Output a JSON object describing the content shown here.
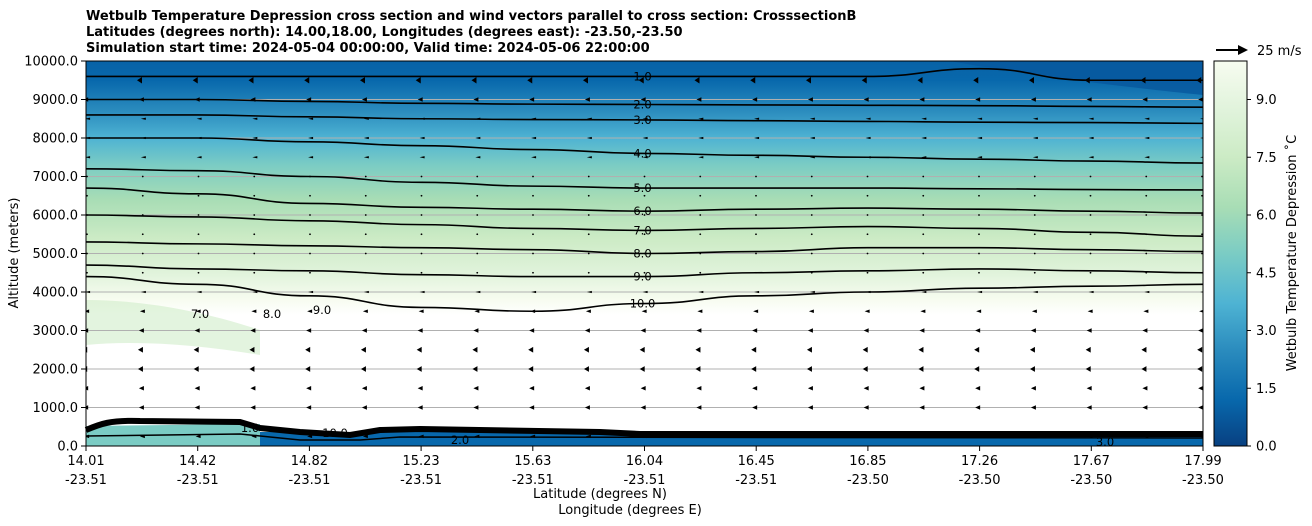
{
  "chart_data": {
    "type": "contour",
    "title_lines": [
      "Wetbulb Temperature Depression cross section and wind vectors parallel to cross section: CrosssectionB",
      "Latitudes (degrees north): 14.00,18.00, Longitudes (degrees east): -23.50,-23.50",
      "Simulation start time: 2024-05-04 00:00:00, Valid time: 2024-05-06 22:00:00"
    ],
    "xlabel_lat": "Latitude (degrees N)",
    "xlabel_lon": "Longitude (degrees E)",
    "ylabel": "Altitude (meters)",
    "ylim": [
      0,
      10000
    ],
    "xlim": [
      14.01,
      17.99
    ],
    "y_ticks": [
      "0.0",
      "1000.0",
      "2000.0",
      "3000.0",
      "4000.0",
      "5000.0",
      "6000.0",
      "7000.0",
      "8000.0",
      "9000.0",
      "10000.0"
    ],
    "x_ticks": [
      {
        "lat": "14.01",
        "lon": "-23.51"
      },
      {
        "lat": "14.42",
        "lon": "-23.51"
      },
      {
        "lat": "14.82",
        "lon": "-23.51"
      },
      {
        "lat": "15.23",
        "lon": "-23.51"
      },
      {
        "lat": "15.63",
        "lon": "-23.51"
      },
      {
        "lat": "16.04",
        "lon": "-23.51"
      },
      {
        "lat": "16.45",
        "lon": "-23.51"
      },
      {
        "lat": "16.85",
        "lon": "-23.50"
      },
      {
        "lat": "17.26",
        "lon": "-23.50"
      },
      {
        "lat": "17.67",
        "lon": "-23.50"
      },
      {
        "lat": "17.99",
        "lon": "-23.50"
      }
    ],
    "colorbar": {
      "label": "Wetbulb Temperature Depression ˚C",
      "min": 0,
      "max": 10,
      "ticks": [
        "0.0",
        "1.5",
        "3.0",
        "4.5",
        "6.0",
        "7.5",
        "9.0"
      ],
      "colors": [
        "#084081",
        "#0868ac",
        "#2b8cbe",
        "#4eb3d3",
        "#7bccc4",
        "#a8ddb5",
        "#ccebc5",
        "#e0f3db",
        "#f7fcf0"
      ]
    },
    "contours": [
      {
        "level": 1.0,
        "label": "1.0",
        "altitudes_m": [
          9600,
          9600,
          9600,
          9600,
          9600,
          9600,
          9600,
          9600,
          9800,
          9500,
          9500
        ]
      },
      {
        "level": 2.0,
        "label": "2.0",
        "altitudes_m": [
          9000,
          9000,
          8950,
          8900,
          8880,
          8870,
          8860,
          8850,
          8840,
          8820,
          8800
        ]
      },
      {
        "level": 3.0,
        "label": "3.0",
        "altitudes_m": [
          8600,
          8600,
          8550,
          8500,
          8480,
          8470,
          8450,
          8430,
          8410,
          8400,
          8380
        ]
      },
      {
        "level": 4.0,
        "label": "4.0",
        "altitudes_m": [
          8000,
          8000,
          7900,
          7800,
          7700,
          7600,
          7550,
          7500,
          7450,
          7400,
          7350
        ]
      },
      {
        "level": 5.0,
        "label": "5.0",
        "altitudes_m": [
          7200,
          7150,
          7000,
          6850,
          6750,
          6700,
          6700,
          6700,
          6680,
          6660,
          6650
        ]
      },
      {
        "level": 6.0,
        "label": "6.0",
        "altitudes_m": [
          6700,
          6550,
          6300,
          6200,
          6150,
          6100,
          6150,
          6180,
          6150,
          6100,
          6050
        ]
      },
      {
        "level": 7.0,
        "label": "7.0",
        "altitudes_m": [
          6000,
          5950,
          5850,
          5750,
          5650,
          5600,
          5650,
          5700,
          5650,
          5550,
          5450
        ]
      },
      {
        "level": 8.0,
        "label": "8.0",
        "altitudes_m": [
          5300,
          5250,
          5200,
          5150,
          5100,
          5000,
          5050,
          5150,
          5150,
          5100,
          5050
        ]
      },
      {
        "level": 9.0,
        "label": "9.0",
        "altitudes_m": [
          4700,
          4600,
          4550,
          4450,
          4400,
          4400,
          4500,
          4550,
          4600,
          4550,
          4500
        ]
      },
      {
        "level": 10.0,
        "label": "10.0",
        "altitudes_m": [
          4400,
          4200,
          3900,
          3600,
          3500,
          3700,
          3900,
          4000,
          4100,
          4150,
          4200
        ]
      }
    ],
    "contour_labels_low": [
      "7.0",
      "8.0",
      "9.0",
      "10.0",
      "1.0",
      "2.0",
      "3.0"
    ],
    "wind_reference": {
      "speed_m_s": 25,
      "label": "25 m/s"
    },
    "wind_rows_altitudes_m": [
      250,
      1000,
      1500,
      2000,
      2500,
      3000,
      3500,
      4000,
      4500,
      5000,
      5500,
      6000,
      6500,
      7000,
      7500,
      8000,
      8500,
      9000,
      9500
    ],
    "wind_u_m_s_by_row": [
      -3,
      -4,
      -4,
      -5,
      -5,
      -4,
      -3,
      -2,
      -1,
      -1,
      -1,
      -1,
      -1,
      -1,
      -2,
      -2,
      -2,
      -4,
      -6
    ]
  }
}
